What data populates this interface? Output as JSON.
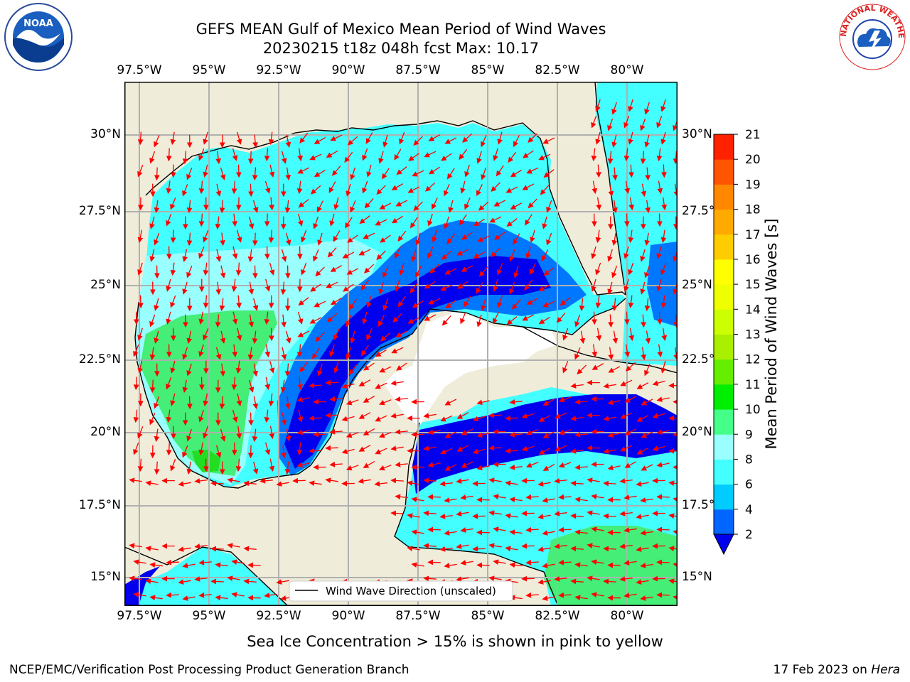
{
  "title": {
    "line1": "GEFS MEAN Gulf of Mexico Mean Period of Wind Waves",
    "line2": "20230215 t18z 048h fcst   Max: 10.17"
  },
  "subtitle": "Sea Ice Concentration > 15% is shown in pink to yellow",
  "footer": {
    "left": "NCEP/EMC/Verification Post Processing Product Generation Branch",
    "date": "17 Feb 2023 on",
    "host": "Hera"
  },
  "legend": {
    "label": "Wind Wave Direction (unscaled)"
  },
  "axes": {
    "lon_labels": [
      "97.5°W",
      "95°W",
      "92.5°W",
      "90°W",
      "87.5°W",
      "85°W",
      "82.5°W",
      "80°W"
    ],
    "lat_labels_left": [
      "30°N",
      "27.5°N",
      "25°N",
      "22.5°N",
      "20°N",
      "17.5°N",
      "15°N"
    ],
    "lat_labels_right": [
      "30°N",
      "27.5°N",
      "25°N",
      "22.5°N",
      "20°N",
      "17.5°N",
      "15°N"
    ]
  },
  "colorbar": {
    "title": "Mean Period of Wind Waves [s]",
    "ticks": [
      "2",
      "4",
      "6",
      "8",
      "9",
      "10",
      "11",
      "12",
      "13",
      "14",
      "15",
      "16",
      "17",
      "18",
      "19",
      "20",
      "21"
    ],
    "colors": [
      "#0066ff",
      "#00ccff",
      "#44ffff",
      "#99ffff",
      "#44ff88",
      "#00ee00",
      "#66ee00",
      "#aaee00",
      "#ccff00",
      "#eeff00",
      "#ffff00",
      "#ffcc00",
      "#ffaa00",
      "#ff8800",
      "#ff5500",
      "#ff2200"
    ]
  },
  "colors": {
    "land": "#efecd9",
    "arrow": "#ff0000",
    "grid": "#b0b0b0"
  },
  "logos": {
    "noaa": "NOAA",
    "nws": "NATIONAL WEATHER SERVICE"
  }
}
